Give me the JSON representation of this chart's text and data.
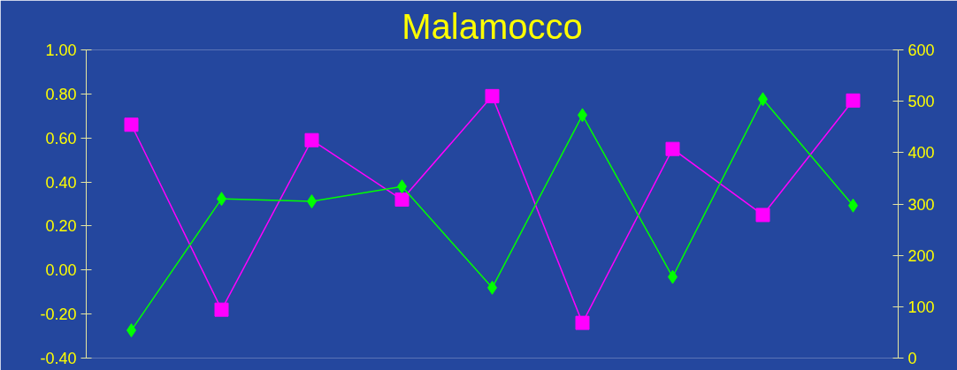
{
  "chart_data": {
    "type": "line",
    "title": "Malamocco",
    "categories": [
      null,
      null,
      null,
      null,
      null,
      null,
      null,
      null,
      null
    ],
    "series": [
      {
        "color": "#ff00ff",
        "marker": "square",
        "values": [
          0.66,
          -0.18,
          0.59,
          0.32,
          0.79,
          -0.24,
          0.55,
          0.25,
          0.77
        ]
      },
      {
        "color": "#00ff00",
        "marker": "diamond",
        "axis": "y2",
        "values": [
          54,
          310,
          305,
          334,
          137,
          473,
          158,
          504,
          297
        ]
      }
    ],
    "ylim": [
      -0.4,
      1.0
    ],
    "yticks": [
      {
        "value": -0.4,
        "label": "-0.40"
      },
      {
        "value": -0.2,
        "label": "-0.20"
      },
      {
        "value": 0,
        "label": "0.00"
      },
      {
        "value": 0.2,
        "label": "0.20"
      },
      {
        "value": 0.4,
        "label": "0.40"
      },
      {
        "value": 0.6,
        "label": "0.60"
      },
      {
        "value": 0.8,
        "label": "0.80"
      },
      {
        "value": 1.0,
        "label": "1.00"
      }
    ],
    "y2lim": [
      0,
      600
    ],
    "y2ticks": [
      0,
      100,
      200,
      300,
      400,
      500,
      600
    ],
    "tick_labels": "y",
    "line_style": "solid",
    "grid": false
  }
}
